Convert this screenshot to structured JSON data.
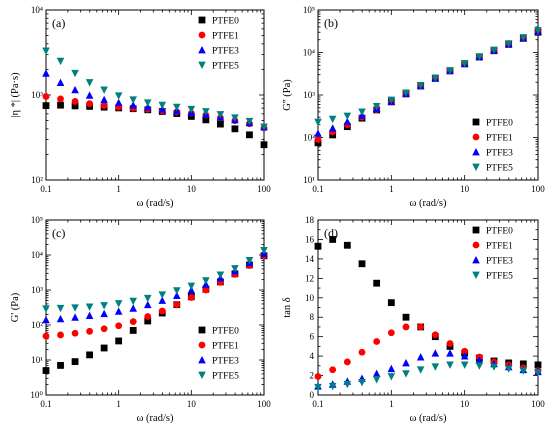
{
  "legend_names": [
    "PTFE0",
    "PTFE1",
    "PTFE3",
    "PTFE5"
  ],
  "series_colors": {
    "PTFE0": "#000000",
    "PTFE1": "#ff0000",
    "PTFE3": "#0000ff",
    "PTFE5": "#008080"
  },
  "series_markers": {
    "PTFE0": "square",
    "PTFE1": "circle",
    "PTFE3": "triangle-up",
    "PTFE5": "triangle-down"
  },
  "x_values": [
    0.1,
    0.1585,
    0.2512,
    0.3981,
    0.631,
    1.0,
    1.585,
    2.512,
    3.981,
    6.31,
    10.0,
    15.85,
    25.12,
    39.81,
    63.1,
    100.0
  ],
  "chart_data": [
    {
      "panel": "(a)",
      "type": "scatter",
      "xscale": "log",
      "yscale": "log",
      "xlabel": "ω (rad/s)",
      "ylabel": "|η *| (Pa·s)",
      "xlim": [
        0.1,
        100
      ],
      "ylim": [
        100,
        10000
      ],
      "x_ticks": [
        "0.1",
        "1",
        "10",
        "100"
      ],
      "y_ticks": [
        "10²",
        "10³",
        "10⁴"
      ],
      "legend_position": "top-right",
      "series": [
        {
          "name": "PTFE0",
          "values": [
            750,
            760,
            745,
            735,
            720,
            705,
            690,
            670,
            640,
            605,
            560,
            510,
            455,
            400,
            340,
            260
          ]
        },
        {
          "name": "PTFE1",
          "values": [
            960,
            900,
            840,
            790,
            750,
            720,
            700,
            680,
            650,
            630,
            610,
            580,
            540,
            500,
            460,
            410
          ]
        },
        {
          "name": "PTFE3",
          "values": [
            1800,
            1400,
            1150,
            990,
            880,
            810,
            760,
            720,
            680,
            650,
            620,
            590,
            550,
            510,
            470,
            420
          ]
        },
        {
          "name": "PTFE5",
          "values": [
            3300,
            2500,
            1800,
            1400,
            1150,
            980,
            880,
            810,
            760,
            720,
            680,
            640,
            590,
            540,
            490,
            420
          ]
        }
      ]
    },
    {
      "panel": "(b)",
      "type": "scatter",
      "xscale": "log",
      "yscale": "log",
      "xlabel": "ω (rad/s)",
      "ylabel": "G'' (Pa)",
      "xlim": [
        0.1,
        100
      ],
      "ylim": [
        10,
        100000
      ],
      "x_ticks": [
        "0.1",
        "1",
        "10",
        "100"
      ],
      "y_ticks": [
        "10¹",
        "10²",
        "10³",
        "10⁴",
        "10⁵"
      ],
      "legend_position": "middle-right",
      "series": [
        {
          "name": "PTFE0",
          "values": [
            75,
            115,
            180,
            285,
            445,
            690,
            1060,
            1630,
            2460,
            3700,
            5400,
            7800,
            11000,
            15500,
            21500,
            30000
          ]
        },
        {
          "name": "PTFE1",
          "values": [
            90,
            135,
            200,
            300,
            455,
            690,
            1060,
            1630,
            2460,
            3700,
            5400,
            7800,
            11000,
            15500,
            21500,
            31000
          ]
        },
        {
          "name": "PTFE3",
          "values": [
            125,
            165,
            235,
            330,
            480,
            710,
            1080,
            1640,
            2480,
            3720,
            5450,
            7900,
            11200,
            15800,
            22000,
            32000
          ]
        },
        {
          "name": "PTFE5",
          "values": [
            230,
            270,
            320,
            400,
            540,
            760,
            1120,
            1680,
            2520,
            3760,
            5500,
            8000,
            11400,
            16100,
            22500,
            33000
          ]
        }
      ]
    },
    {
      "panel": "(c)",
      "type": "scatter",
      "xscale": "log",
      "yscale": "log",
      "xlabel": "ω (rad/s)",
      "ylabel": "G' (Pa)",
      "xlim": [
        0.1,
        100
      ],
      "ylim": [
        1,
        100000
      ],
      "x_ticks": [
        "0.1",
        "1",
        "10",
        "100"
      ],
      "y_ticks": [
        "10⁰",
        "10¹",
        "10²",
        "10³",
        "10⁴",
        "10⁵"
      ],
      "legend_position": "bottom-right",
      "series": [
        {
          "name": "PTFE0",
          "values": [
            5,
            7,
            9,
            14,
            22,
            35,
            70,
            130,
            220,
            380,
            640,
            1050,
            1700,
            2900,
            5200,
            9500
          ]
        },
        {
          "name": "PTFE1",
          "values": [
            48,
            52,
            58,
            66,
            78,
            95,
            125,
            175,
            250,
            380,
            610,
            1000,
            1650,
            2800,
            5000,
            9500
          ]
        },
        {
          "name": "PTFE3",
          "values": [
            140,
            150,
            165,
            185,
            210,
            245,
            300,
            380,
            500,
            690,
            990,
            1450,
            2200,
            3500,
            6000,
            11000
          ]
        },
        {
          "name": "PTFE5",
          "values": [
            290,
            300,
            310,
            330,
            360,
            410,
            480,
            580,
            730,
            960,
            1300,
            1850,
            2700,
            4100,
            7000,
            13500
          ]
        }
      ]
    },
    {
      "panel": "(d)",
      "type": "scatter",
      "xscale": "log",
      "yscale": "linear",
      "xlabel": "ω (rad/s)",
      "ylabel": "tan δ",
      "xlim": [
        0.1,
        100
      ],
      "ylim": [
        0,
        18
      ],
      "x_ticks": [
        "0.1",
        "1",
        "10",
        "100"
      ],
      "y_ticks": [
        "0",
        "2",
        "4",
        "6",
        "8",
        "10",
        "12",
        "14",
        "16",
        "18"
      ],
      "legend_position": "top-right",
      "series": [
        {
          "name": "PTFE0",
          "values": [
            15.3,
            16.0,
            15.4,
            13.5,
            11.5,
            9.5,
            8.0,
            7.0,
            6.0,
            5.0,
            4.3,
            3.8,
            3.5,
            3.3,
            3.2,
            3.1
          ]
        },
        {
          "name": "PTFE1",
          "values": [
            1.9,
            2.6,
            3.4,
            4.4,
            5.5,
            6.4,
            7.0,
            7.0,
            6.2,
            5.3,
            4.5,
            3.9,
            3.4,
            3.1,
            2.8,
            2.5
          ]
        },
        {
          "name": "PTFE3",
          "values": [
            0.9,
            1.1,
            1.4,
            1.7,
            2.2,
            2.7,
            3.3,
            3.9,
            4.3,
            4.3,
            4.0,
            3.6,
            3.2,
            2.9,
            2.6,
            2.4
          ]
        },
        {
          "name": "PTFE5",
          "values": [
            0.8,
            0.9,
            1.1,
            1.3,
            1.6,
            1.9,
            2.2,
            2.6,
            2.9,
            3.1,
            3.1,
            3.0,
            2.9,
            2.7,
            2.5,
            2.3
          ]
        }
      ]
    }
  ]
}
